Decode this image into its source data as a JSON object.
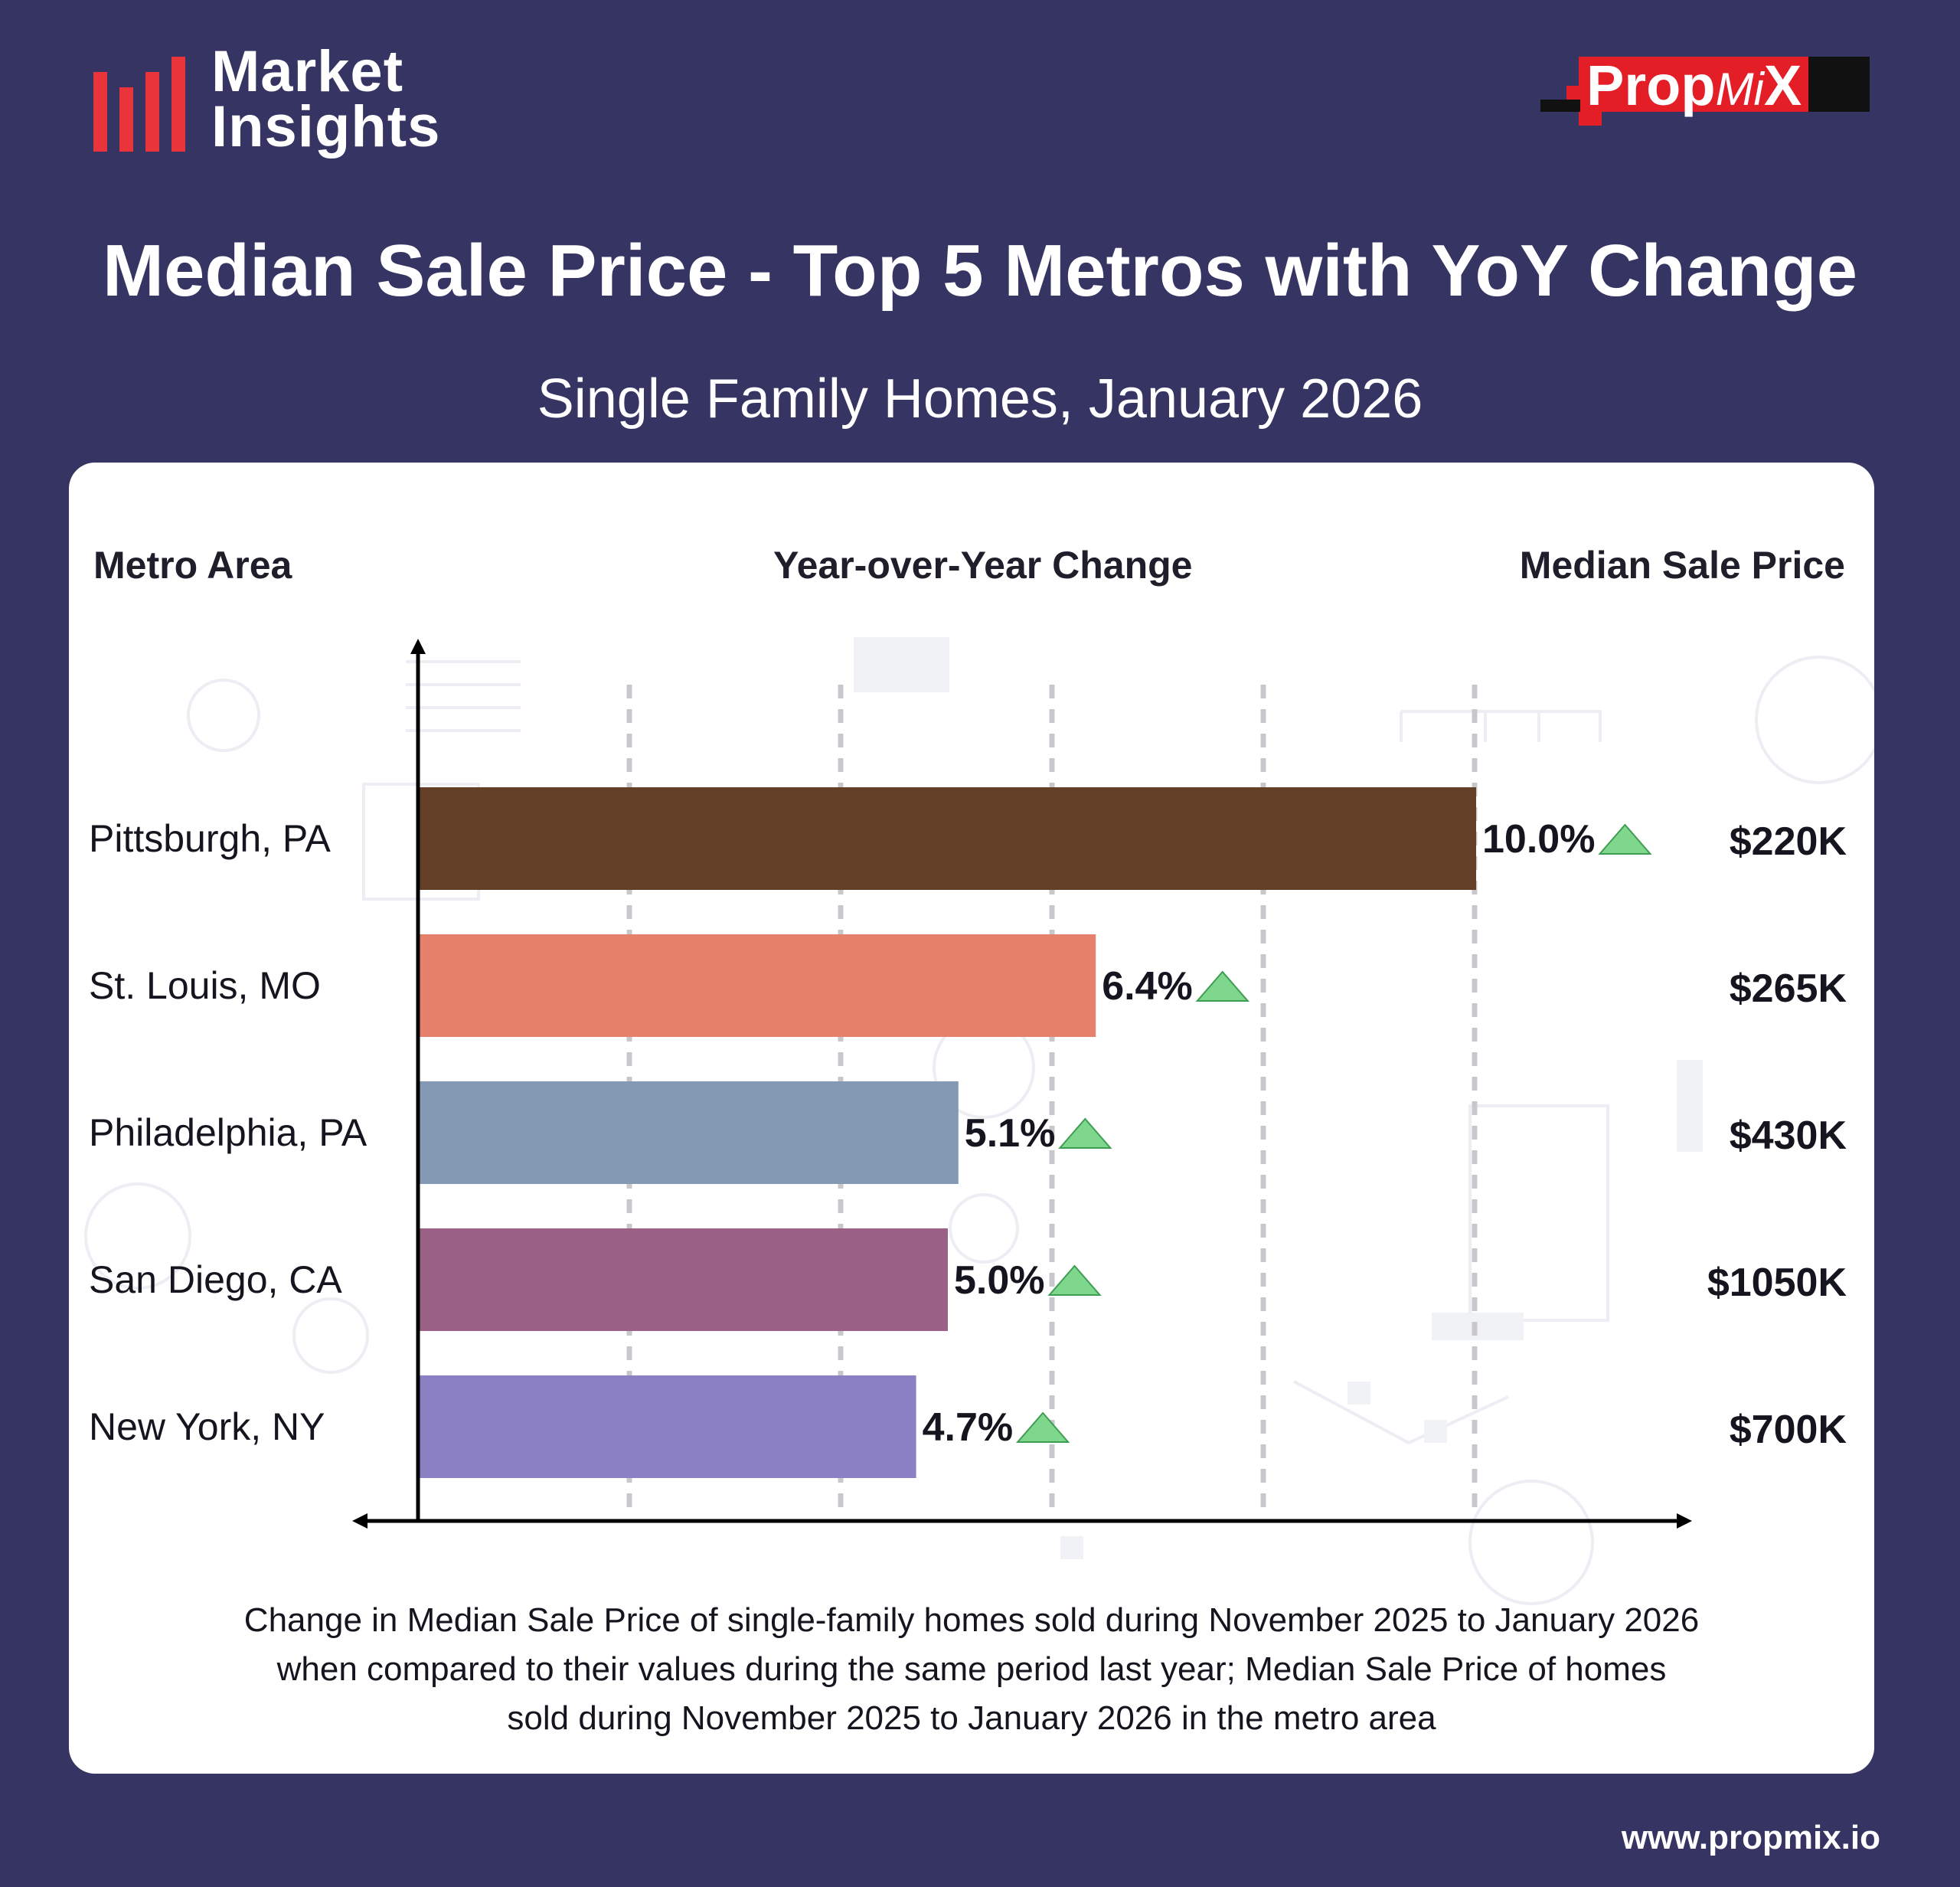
{
  "brand": {
    "line1": "Market",
    "line2": "Insights"
  },
  "logo": {
    "prop": "Prop",
    "mi": "Mi",
    "x": "X"
  },
  "colors": {
    "background": "#353463",
    "brand_red": "#e8343a",
    "increase_marker": "#7ed78d"
  },
  "chart_data": {
    "type": "bar",
    "orientation": "horizontal",
    "title": "Median Sale Price - Top 5 Metros with YoY Change",
    "subtitle": "Single Family Homes, January 2026",
    "column_headers": {
      "metro": "Metro Area",
      "change": "Year-over-Year Change",
      "price": "Median Sale Price"
    },
    "categories": [
      "Pittsburgh, PA",
      "St. Louis, MO",
      "Philadelphia, PA",
      "San Diego, CA",
      "New York, NY"
    ],
    "values": [
      10.0,
      6.4,
      5.1,
      5.0,
      4.7
    ],
    "value_labels": [
      "10.0%",
      "6.4%",
      "5.1%",
      "5.0%",
      "4.7%"
    ],
    "prices": [
      "$220K",
      "$265K",
      "$430K",
      "$1050K",
      "$700K"
    ],
    "bar_colors": [
      "#643f27",
      "#e5806a",
      "#8499b3",
      "#9a6085",
      "#8b80c4"
    ],
    "xlim": [
      0,
      12
    ],
    "grid_values": [
      2,
      4,
      6,
      8,
      10
    ],
    "grid": true,
    "xlabel": "",
    "ylabel": ""
  },
  "footnote": [
    "Change in Median Sale Price of single-family homes sold during November 2025 to January 2026",
    "when compared to their values during the same period last year; Median Sale Price of homes",
    "sold during November 2025 to January 2026 in the metro area"
  ],
  "website": "www.propmix.io"
}
